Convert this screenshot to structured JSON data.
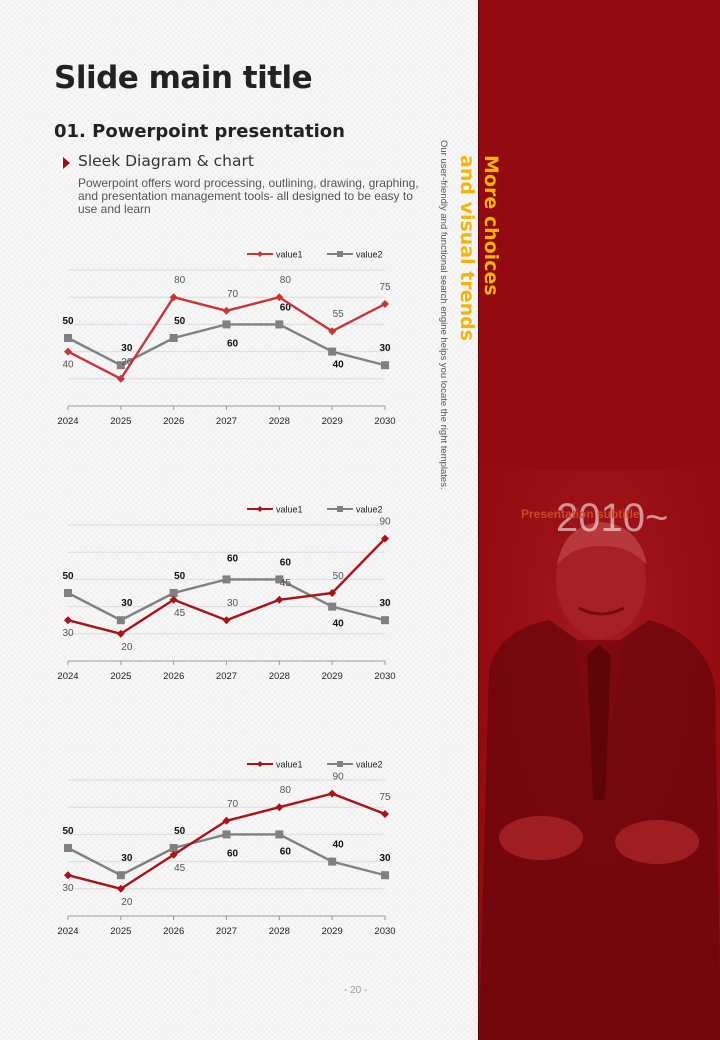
{
  "slide": {
    "title": "Slide main title",
    "subheading": "01. Powerpoint presentation",
    "bullet_title": "Sleek Diagram & chart",
    "description": "Powerpoint offers word processing, outlining,  drawing, graphing, and presentation management tools- all designed to be easy to use and learn",
    "side_text": "Our user-friendly and functional search engine helps you locate the right templates.",
    "page_number": "- 20 -"
  },
  "panel": {
    "heading_line1": "More choices",
    "heading_line2": "and visual trends",
    "year": "2010~",
    "subtitle": "Presentation subtitle",
    "colors": {
      "background": "#930a10",
      "heading": "#f4b40c"
    }
  },
  "chart_data": [
    {
      "type": "line",
      "categories": [
        "2024",
        "2025",
        "2026",
        "2027",
        "2028",
        "2029",
        "2030"
      ],
      "ylim": [
        0,
        100
      ],
      "grid": true,
      "legend": "top-right",
      "series": [
        {
          "name": "value1",
          "color": "#c8363c",
          "values": [
            40,
            20,
            80,
            70,
            80,
            55,
            75
          ]
        },
        {
          "name": "value2",
          "color": "#808080",
          "values": [
            50,
            30,
            50,
            60,
            60,
            40,
            30
          ]
        }
      ]
    },
    {
      "type": "line",
      "categories": [
        "2024",
        "2025",
        "2026",
        "2027",
        "2028",
        "2029",
        "2030"
      ],
      "ylim": [
        0,
        100
      ],
      "grid": true,
      "legend": "top-right",
      "series": [
        {
          "name": "value1",
          "color": "#a8141a",
          "values": [
            30,
            20,
            45,
            30,
            45,
            50,
            90
          ]
        },
        {
          "name": "value2",
          "color": "#808080",
          "values": [
            50,
            30,
            50,
            60,
            60,
            40,
            30
          ]
        }
      ]
    },
    {
      "type": "line",
      "categories": [
        "2024",
        "2025",
        "2026",
        "2027",
        "2028",
        "2029",
        "2030"
      ],
      "ylim": [
        0,
        100
      ],
      "grid": true,
      "legend": "top-right",
      "series": [
        {
          "name": "value1",
          "color": "#a8141a",
          "values": [
            30,
            20,
            45,
            70,
            80,
            90,
            75
          ]
        },
        {
          "name": "value2",
          "color": "#808080",
          "values": [
            50,
            30,
            50,
            60,
            60,
            40,
            30
          ]
        }
      ]
    }
  ]
}
